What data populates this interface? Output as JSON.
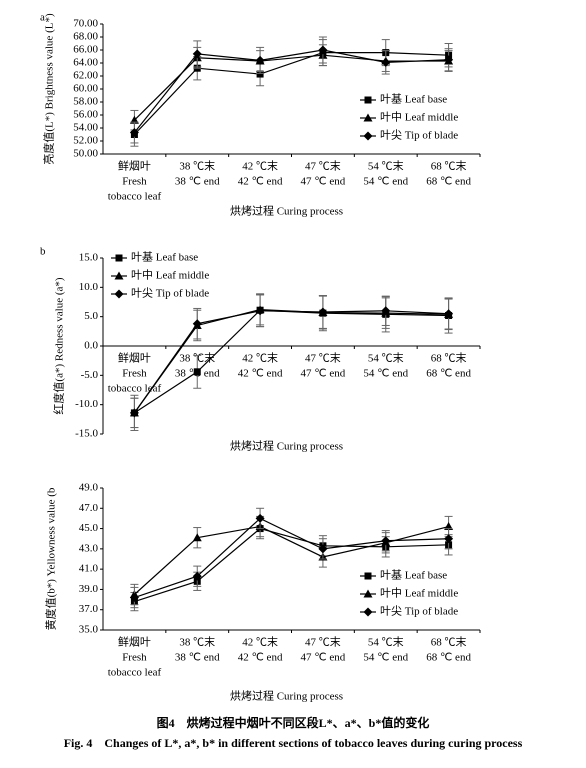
{
  "chart_data": [
    {
      "type": "line",
      "panel": "a",
      "xlabel": "烘烤过程 Curing process",
      "ylabel": "亮度值(L*) Brightness value (L*)",
      "categories": [
        [
          "鲜烟叶",
          "Fresh",
          "tobacco leaf"
        ],
        [
          "38 ℃末",
          "38 ℃ end"
        ],
        [
          "42 ℃末",
          "42 ℃ end"
        ],
        [
          "47 ℃末",
          "47 ℃ end"
        ],
        [
          "54 ℃末",
          "54 ℃ end"
        ],
        [
          "68 ℃末",
          "68 ℃ end"
        ]
      ],
      "series": [
        {
          "name": "叶基 Leaf base",
          "color": "#000000",
          "marker": "square",
          "values": [
            53.0,
            63.2,
            62.3,
            65.6,
            65.6,
            65.2
          ],
          "errors": [
            1.8,
            1.8,
            1.8,
            2.0,
            2.0,
            1.8
          ]
        },
        {
          "name": "叶中 Leaf middle",
          "color": "#000000",
          "marker": "triangle",
          "values": [
            55.2,
            64.8,
            64.3,
            65.2,
            64.3,
            64.3
          ],
          "errors": [
            1.5,
            1.6,
            1.6,
            1.6,
            1.6,
            1.6
          ]
        },
        {
          "name": "叶尖 Tip of blade",
          "color": "#000000",
          "marker": "diamond",
          "values": [
            53.3,
            65.4,
            64.4,
            66.0,
            64.1,
            64.5
          ],
          "errors": [
            1.6,
            2.0,
            2.0,
            2.0,
            1.8,
            1.7
          ]
        }
      ],
      "ylim": [
        50,
        70
      ],
      "yticks": [
        {
          "value": 50,
          "label": "50.00"
        },
        {
          "value": 52,
          "label": "52.00"
        },
        {
          "value": 54,
          "label": "54.00"
        },
        {
          "value": 56,
          "label": "56.00"
        },
        {
          "value": 58,
          "label": "58.00"
        },
        {
          "value": 60,
          "label": "60.00"
        },
        {
          "value": 62,
          "label": "62.00"
        },
        {
          "value": 64,
          "label": "64.00"
        },
        {
          "value": 66,
          "label": "66.00"
        },
        {
          "value": 68,
          "label": "68.00"
        },
        {
          "value": 70,
          "label": "70.00"
        }
      ],
      "legend": "lower right",
      "grid": false
    },
    {
      "type": "line",
      "panel": "b",
      "xlabel": "烘烤过程 Curing process",
      "ylabel": "红度值(a*) Redness value (a*)",
      "categories": [
        [
          "鲜烟叶",
          "Fresh",
          "tobacco leaf"
        ],
        [
          "38 ℃末",
          "38 ℃ end"
        ],
        [
          "42 ℃末",
          "42 ℃ end"
        ],
        [
          "47 ℃末",
          "47 ℃ end"
        ],
        [
          "54 ℃末",
          "54 ℃ end"
        ],
        [
          "68 ℃末",
          "68 ℃ end"
        ]
      ],
      "series": [
        {
          "name": "叶基 Leaf base",
          "color": "#000000",
          "marker": "square",
          "values": [
            -11.4,
            -4.4,
            6.1,
            5.6,
            5.4,
            5.2
          ],
          "errors": [
            3.0,
            2.8,
            2.8,
            3.0,
            3.0,
            3.0
          ]
        },
        {
          "name": "叶中 Leaf middle",
          "color": "#000000",
          "marker": "triangle",
          "values": [
            -11.4,
            3.5,
            6.2,
            5.7,
            5.6,
            5.4
          ],
          "errors": [
            2.5,
            2.6,
            2.6,
            2.8,
            2.6,
            2.6
          ]
        },
        {
          "name": "叶尖 Tip of blade",
          "color": "#000000",
          "marker": "diamond",
          "values": [
            -11.4,
            3.8,
            6.0,
            5.8,
            6.0,
            5.5
          ],
          "errors": [
            2.5,
            2.6,
            2.7,
            2.8,
            2.5,
            2.6
          ]
        }
      ],
      "ylim": [
        -15,
        15
      ],
      "yticks": [
        {
          "value": -15,
          "label": "-15.0"
        },
        {
          "value": -10,
          "label": "-10.0"
        },
        {
          "value": -5,
          "label": "-5.0"
        },
        {
          "value": 0,
          "label": "0.0"
        },
        {
          "value": 5,
          "label": "5.0"
        },
        {
          "value": 10,
          "label": "10.0"
        },
        {
          "value": 15,
          "label": "15.0"
        }
      ],
      "legend": "upper left",
      "xaxis_at_zero": true,
      "grid": false
    },
    {
      "type": "line",
      "panel": null,
      "xlabel": "烘烤过程 Curing process",
      "ylabel": "黄度值(b*) Yellowness value (b",
      "categories": [
        [
          "鲜烟叶",
          "Fresh",
          "tobacco leaf"
        ],
        [
          "38 ℃末",
          "38 ℃ end"
        ],
        [
          "42 ℃末",
          "42 ℃ end"
        ],
        [
          "47 ℃末",
          "47 ℃ end"
        ],
        [
          "54 ℃末",
          "54 ℃ end"
        ],
        [
          "68 ℃末",
          "68 ℃ end"
        ]
      ],
      "series": [
        {
          "name": "叶基 Leaf base",
          "color": "#000000",
          "marker": "square",
          "values": [
            37.8,
            39.8,
            45.0,
            43.3,
            43.2,
            43.4
          ],
          "errors": [
            0.9,
            0.9,
            1.0,
            1.0,
            1.0,
            1.0
          ]
        },
        {
          "name": "叶中 Leaf middle",
          "color": "#000000",
          "marker": "triangle",
          "values": [
            38.5,
            44.1,
            45.2,
            42.2,
            43.6,
            45.2
          ],
          "errors": [
            1.0,
            1.0,
            1.0,
            1.0,
            1.0,
            1.0
          ]
        },
        {
          "name": "叶尖 Tip of blade",
          "color": "#000000",
          "marker": "diamond",
          "values": [
            38.2,
            40.3,
            46.0,
            43.0,
            43.8,
            44.0
          ],
          "errors": [
            1.0,
            1.0,
            1.0,
            1.0,
            1.0,
            1.0
          ]
        }
      ],
      "ylim": [
        35,
        49
      ],
      "yticks": [
        {
          "value": 35,
          "label": "35.0"
        },
        {
          "value": 37,
          "label": "37.0"
        },
        {
          "value": 39,
          "label": "39.0"
        },
        {
          "value": 41,
          "label": "41.0"
        },
        {
          "value": 43,
          "label": "43.0"
        },
        {
          "value": 45,
          "label": "45.0"
        },
        {
          "value": 47,
          "label": "47.0"
        },
        {
          "value": 49,
          "label": "49.0"
        }
      ],
      "legend": "lower right",
      "grid": false
    }
  ],
  "caption": {
    "zh": "图4　烘烤过程中烟叶不同区段L*、a*、b*值的变化",
    "en": "Fig. 4　Changes of L*, a*, b* in different sections of tobacco leaves during curing process"
  }
}
